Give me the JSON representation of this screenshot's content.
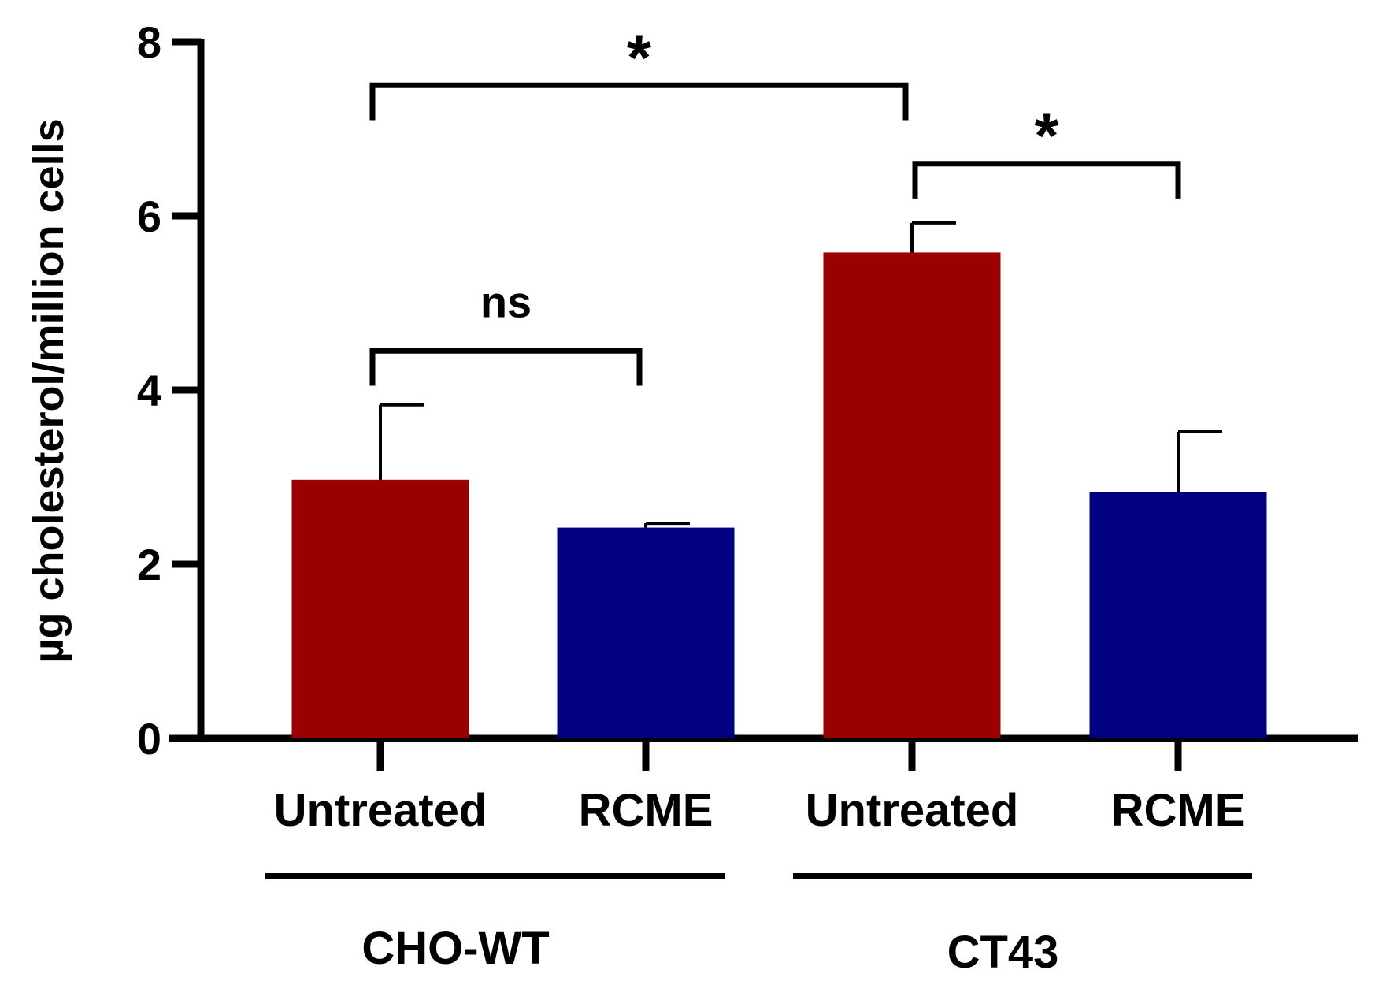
{
  "chart_data": {
    "type": "bar",
    "title": "",
    "xlabel": "",
    "ylabel": "µg cholesterol/million cells",
    "ylim": [
      0,
      8
    ],
    "yticks": [
      0,
      2,
      4,
      6,
      8
    ],
    "grid": false,
    "bars": [
      {
        "category": "Untreated",
        "group": "CHO-WT",
        "value": 2.97,
        "error": 0.86,
        "color": "#9B0000"
      },
      {
        "category": "RCME",
        "group": "CHO-WT",
        "value": 2.42,
        "error": 0.05,
        "color": "#000080"
      },
      {
        "category": "Untreated",
        "group": "CT43",
        "value": 5.58,
        "error": 0.34,
        "color": "#9B0000"
      },
      {
        "category": "RCME",
        "group": "CT43",
        "value": 2.83,
        "error": 0.69,
        "color": "#000080"
      }
    ],
    "groups": [
      {
        "name": "CHO-WT",
        "bars": [
          0,
          1
        ]
      },
      {
        "name": "CT43",
        "bars": [
          2,
          3
        ]
      }
    ],
    "annotations": [
      {
        "from": 0,
        "to": 1,
        "label": "ns",
        "kind": "text",
        "y": 4.45,
        "drop": 0.4
      },
      {
        "from": 0,
        "to": 2,
        "label": "*",
        "kind": "star",
        "y": 7.5,
        "drop": 0.4
      },
      {
        "from": 2,
        "to": 3,
        "label": "*",
        "kind": "star",
        "y": 6.6,
        "drop": 0.4
      }
    ]
  }
}
